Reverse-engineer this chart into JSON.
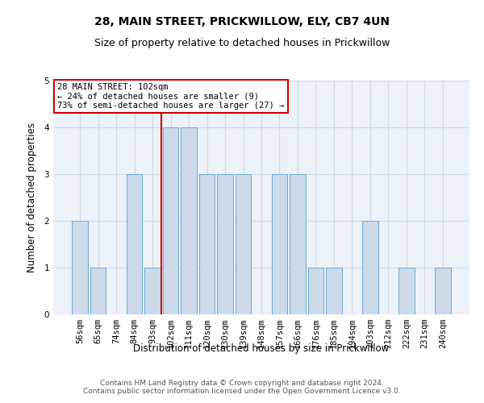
{
  "title1": "28, MAIN STREET, PRICKWILLOW, ELY, CB7 4UN",
  "title2": "Size of property relative to detached houses in Prickwillow",
  "xlabel": "Distribution of detached houses by size in Prickwillow",
  "ylabel": "Number of detached properties",
  "categories": [
    "56sqm",
    "65sqm",
    "74sqm",
    "84sqm",
    "93sqm",
    "102sqm",
    "111sqm",
    "120sqm",
    "130sqm",
    "139sqm",
    "148sqm",
    "157sqm",
    "166sqm",
    "176sqm",
    "185sqm",
    "194sqm",
    "203sqm",
    "212sqm",
    "222sqm",
    "231sqm",
    "240sqm"
  ],
  "values": [
    2,
    1,
    0,
    3,
    1,
    4,
    4,
    3,
    3,
    3,
    0,
    3,
    3,
    1,
    1,
    0,
    2,
    0,
    1,
    0,
    1
  ],
  "bar_color": "#ccdaea",
  "bar_edge_color": "#6aaad4",
  "reference_line_x": "102sqm",
  "reference_line_color": "#cc0000",
  "annotation_text": "28 MAIN STREET: 102sqm\n← 24% of detached houses are smaller (9)\n73% of semi-detached houses are larger (27) →",
  "annotation_box_color": "#ffffff",
  "annotation_box_edge": "#cc0000",
  "ylim": [
    0,
    5
  ],
  "yticks": [
    0,
    1,
    2,
    3,
    4,
    5
  ],
  "grid_color": "#d0d8e8",
  "background_color": "#edf2f9",
  "footer": "Contains HM Land Registry data © Crown copyright and database right 2024.\nContains public sector information licensed under the Open Government Licence v3.0.",
  "title1_fontsize": 10,
  "title2_fontsize": 9,
  "xlabel_fontsize": 8.5,
  "ylabel_fontsize": 8.5,
  "tick_fontsize": 7.5,
  "footer_fontsize": 6.5
}
